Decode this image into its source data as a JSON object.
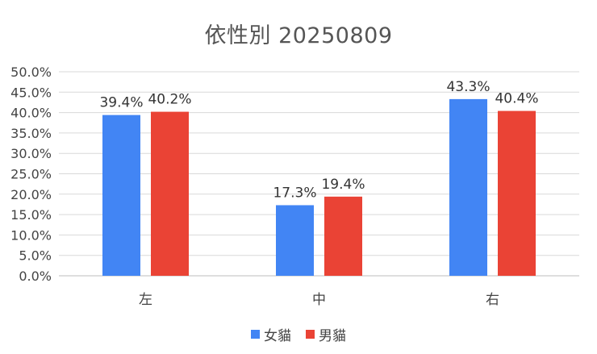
{
  "chart_data": {
    "type": "bar",
    "title": "依性別 20250809",
    "categories": [
      "左",
      "中",
      "右"
    ],
    "series": [
      {
        "name": "女貓",
        "color": "#4285F4",
        "values": [
          39.4,
          17.3,
          43.3
        ],
        "labels": [
          "39.4%",
          "17.3%",
          "43.3%"
        ]
      },
      {
        "name": "男貓",
        "color": "#EA4335",
        "values": [
          40.2,
          19.4,
          40.4
        ],
        "labels": [
          "40.2%",
          "19.4%",
          "40.4%"
        ]
      }
    ],
    "ylim": [
      0,
      50
    ],
    "yticks": [
      "0.0%",
      "5.0%",
      "10.0%",
      "15.0%",
      "20.0%",
      "25.0%",
      "30.0%",
      "35.0%",
      "40.0%",
      "45.0%",
      "50.0%"
    ],
    "grid": true,
    "legend_position": "bottom"
  }
}
